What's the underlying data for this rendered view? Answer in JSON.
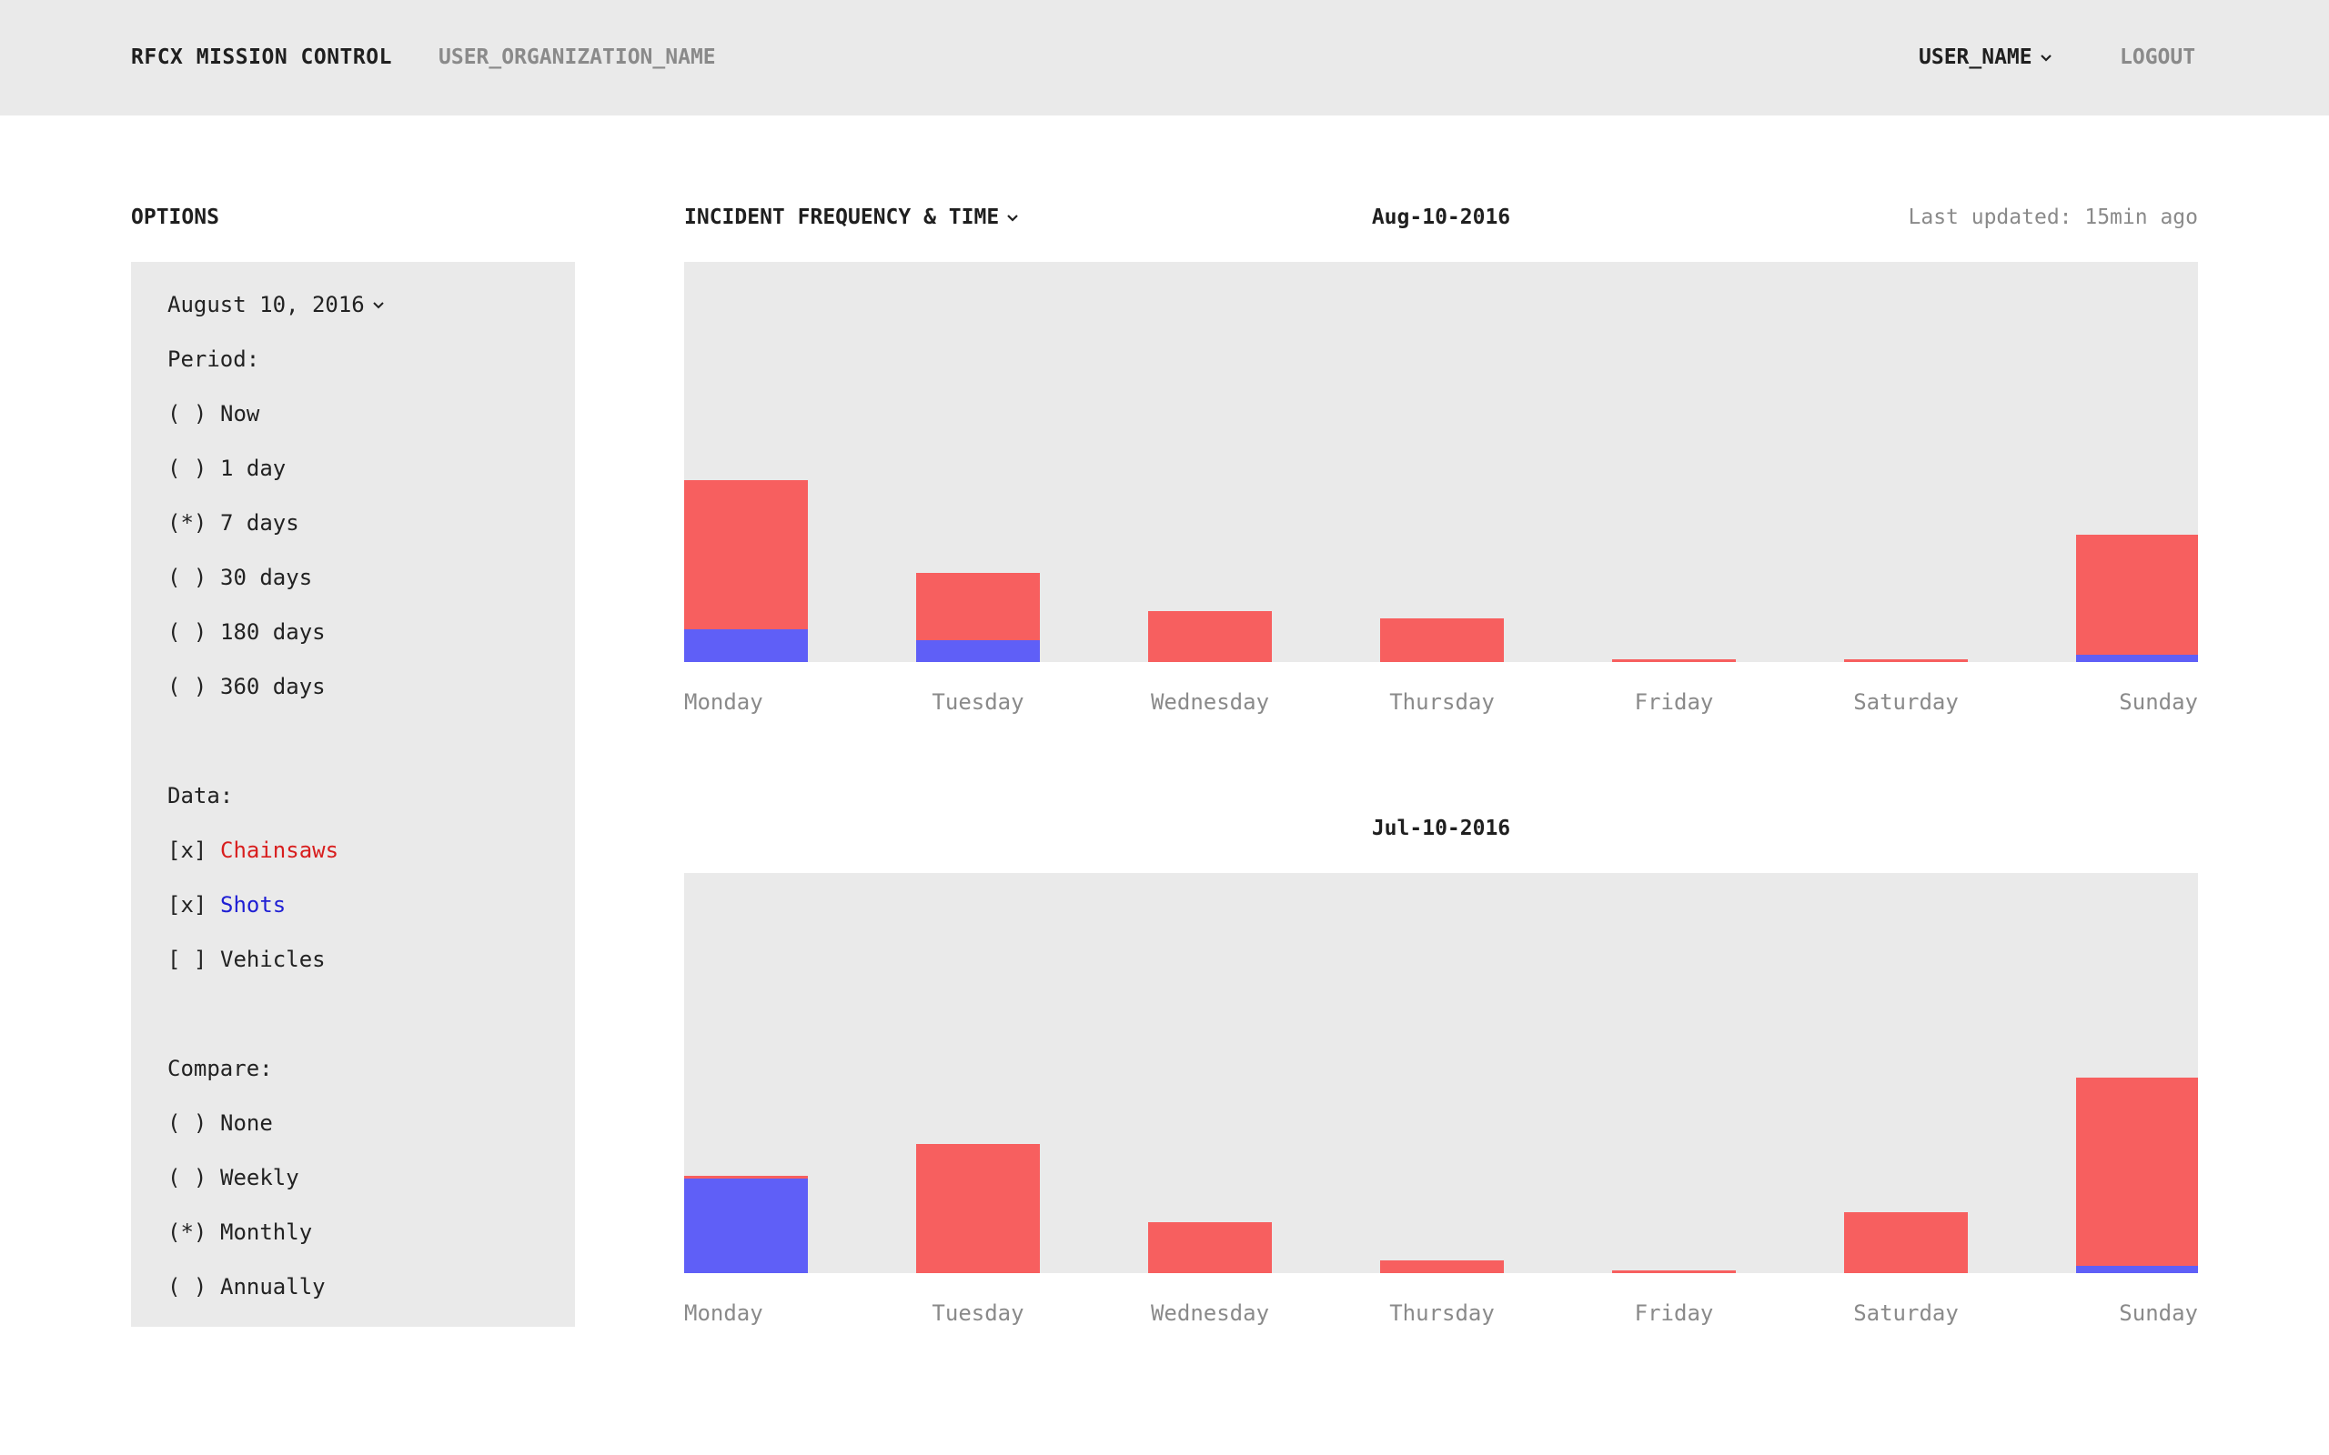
{
  "header": {
    "brand": "RFCX MISSION CONTROL",
    "organization": "USER_ORGANIZATION_NAME",
    "user": "USER_NAME",
    "logout": "LOGOUT"
  },
  "options": {
    "title": "OPTIONS",
    "date": "August 10, 2016",
    "period_label": "Period:",
    "period": [
      {
        "mark": "( )",
        "label": "Now"
      },
      {
        "mark": "( )",
        "label": "1 day"
      },
      {
        "mark": "(*)",
        "label": "7 days"
      },
      {
        "mark": "( )",
        "label": "30 days"
      },
      {
        "mark": "( )",
        "label": "180 days"
      },
      {
        "mark": "( )",
        "label": "360 days"
      }
    ],
    "data_label": "Data:",
    "data": [
      {
        "mark": "[x]",
        "label": "Chainsaws"
      },
      {
        "mark": "[x]",
        "label": "Shots"
      },
      {
        "mark": "[ ]",
        "label": "Vehicles"
      }
    ],
    "compare_label": "Compare:",
    "compare": [
      {
        "mark": "( )",
        "label": "None"
      },
      {
        "mark": "( )",
        "label": "Weekly"
      },
      {
        "mark": "(*)",
        "label": "Monthly"
      },
      {
        "mark": "( )",
        "label": "Annually"
      }
    ]
  },
  "main": {
    "section_title": "INCIDENT FREQUENCY & TIME",
    "last_updated": "Last updated: 15min ago"
  },
  "colors": {
    "chainsaws": "#f75f5f",
    "shots": "#5f5ff7",
    "panel": "#eaeaea"
  },
  "chart_data": [
    {
      "type": "bar",
      "title": "Aug-10-2016",
      "categories": [
        "Monday",
        "Tuesday",
        "Wednesday",
        "Thursday",
        "Friday",
        "Saturday",
        "Sunday"
      ],
      "series": [
        {
          "name": "Shots",
          "values": [
            36,
            24,
            0,
            0,
            0,
            0,
            8
          ]
        },
        {
          "name": "Chainsaws",
          "values": [
            164,
            74,
            56,
            48,
            3,
            3,
            132
          ]
        }
      ],
      "ylim": [
        0,
        440
      ]
    },
    {
      "type": "bar",
      "title": "Jul-10-2016",
      "categories": [
        "Monday",
        "Tuesday",
        "Wednesday",
        "Thursday",
        "Friday",
        "Saturday",
        "Sunday"
      ],
      "series": [
        {
          "name": "Shots",
          "values": [
            104,
            0,
            0,
            0,
            0,
            0,
            8
          ]
        },
        {
          "name": "Chainsaws",
          "values": [
            3,
            142,
            56,
            14,
            3,
            67,
            207
          ]
        }
      ],
      "ylim": [
        0,
        440
      ]
    }
  ]
}
